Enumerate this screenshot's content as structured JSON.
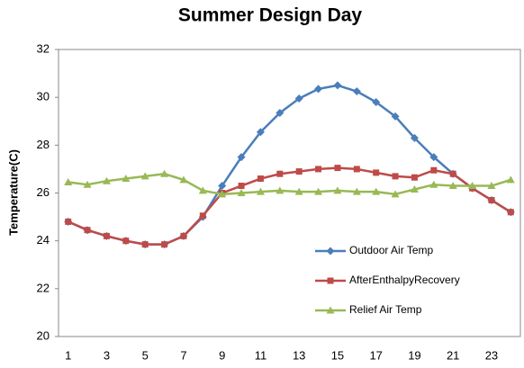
{
  "chart_data": {
    "type": "line",
    "title": "Summer Design Day",
    "y_label": "Temperature(C)",
    "categories": [
      1,
      null,
      3,
      null,
      5,
      null,
      7,
      null,
      9,
      null,
      11,
      null,
      13,
      null,
      15,
      null,
      17,
      null,
      19,
      null,
      21,
      null,
      23,
      null
    ],
    "series": [
      {
        "name": "Outdoor Air Temp",
        "color": "#4a7ebb",
        "marker": "diamond",
        "values": [
          24.8,
          24.45,
          24.2,
          24.0,
          23.85,
          23.85,
          24.2,
          25.0,
          26.3,
          27.5,
          28.55,
          29.35,
          29.95,
          30.35,
          30.5,
          30.25,
          29.8,
          29.2,
          28.3,
          27.5,
          26.8,
          26.2,
          25.7,
          25.2
        ]
      },
      {
        "name": "AfterEnthalpyRecovery",
        "color": "#be4b48",
        "marker": "square",
        "values": [
          24.8,
          24.45,
          24.2,
          24.0,
          23.85,
          23.85,
          24.2,
          25.05,
          26.0,
          26.3,
          26.6,
          26.8,
          26.9,
          27.0,
          27.05,
          27.0,
          26.85,
          26.7,
          26.65,
          26.95,
          26.8,
          26.2,
          25.7,
          25.2
        ]
      },
      {
        "name": "Relief Air Temp",
        "color": "#98b954",
        "marker": "triangle",
        "values": [
          26.45,
          26.35,
          26.5,
          26.6,
          26.7,
          26.8,
          26.55,
          26.1,
          25.95,
          26.0,
          26.05,
          26.1,
          26.05,
          26.05,
          26.1,
          26.05,
          26.05,
          25.95,
          26.15,
          26.35,
          26.3,
          26.3,
          26.3,
          26.55
        ]
      }
    ],
    "ylim": [
      20,
      32
    ],
    "yticks": [
      20,
      22,
      24,
      26,
      28,
      30,
      32
    ],
    "grid": false,
    "legend": "lower right"
  }
}
